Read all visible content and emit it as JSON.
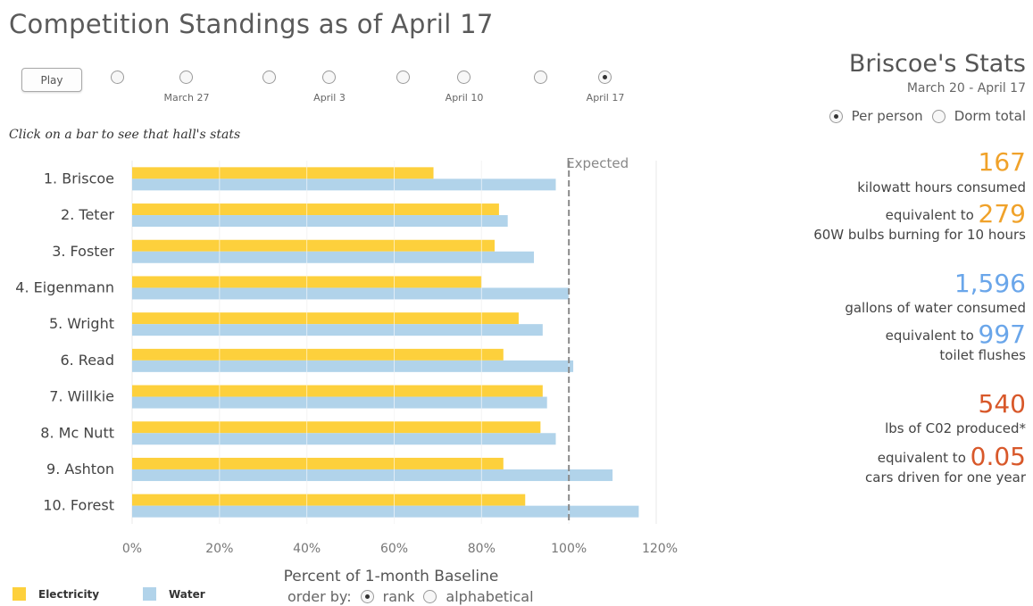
{
  "header": {
    "title": "Competition Standings as of April 17"
  },
  "controls": {
    "play_label": "Play",
    "timeline_labels": [
      "March 27",
      "April 3",
      "April 10",
      "April 17"
    ],
    "hint": "Click on a bar to see that hall's stats"
  },
  "legend": {
    "electricity": "Electricity",
    "water": "Water"
  },
  "order_by": {
    "label": "order by:",
    "options": [
      "rank",
      "alphabetical"
    ],
    "selected": "rank"
  },
  "colors": {
    "electricity": "#fdd03c",
    "water": "#b1d3ea",
    "expected_line": "#8a8a8a"
  },
  "chart_data": {
    "type": "bar",
    "orientation": "horizontal",
    "categories": [
      "1. Briscoe",
      "2. Teter",
      "3. Foster",
      "4. Eigenmann",
      "5. Wright",
      "6. Read",
      "7. Willkie",
      "8. Mc Nutt",
      "9. Ashton",
      "10. Forest"
    ],
    "series": [
      {
        "name": "Electricity",
        "values": [
          69,
          84,
          83,
          80,
          88.5,
          85,
          94,
          93.5,
          85,
          90
        ]
      },
      {
        "name": "Water",
        "values": [
          97,
          86,
          92,
          100,
          94,
          101,
          95,
          97,
          110,
          116
        ]
      }
    ],
    "xlabel": "Percent of 1-month Baseline",
    "xlim": [
      0,
      120
    ],
    "xticks": [
      "0%",
      "20%",
      "40%",
      "60%",
      "80%",
      "100%",
      "120%"
    ],
    "reference_line": {
      "value": 100,
      "label": "Expected"
    },
    "grid": true,
    "legend_position": "bottom-left"
  },
  "stats": {
    "title": "Briscoe's Stats",
    "date_range": "March 20 - April 17",
    "mode_options": [
      "Per person",
      "Dorm total"
    ],
    "mode_selected": "Per person",
    "kwh_value": "167",
    "kwh_label": "kilowatt hours consumed",
    "equivalent_to": "equivalent to",
    "bulbs_value": "279",
    "bulbs_label": "60W bulbs burning for 10 hours",
    "water_value": "1,596",
    "water_label": "gallons of water consumed",
    "flush_value": "997",
    "flush_label": "toilet flushes",
    "co2_value": "540",
    "co2_label": "lbs of C02 produced*",
    "cars_value": "0.05",
    "cars_label": "cars driven for one year"
  }
}
